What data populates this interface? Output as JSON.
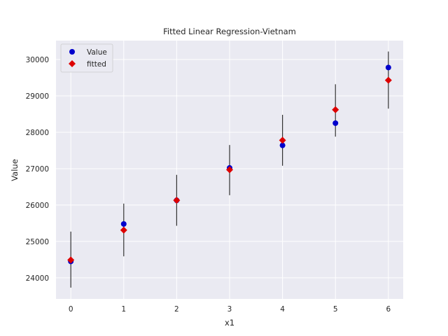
{
  "chart_data": {
    "type": "scatter",
    "title": "Fitted Linear Regression-Vietnam",
    "xlabel": "x1",
    "ylabel": "Value",
    "x": [
      0,
      1,
      2,
      3,
      4,
      5,
      6
    ],
    "xticks": [
      "0",
      "1",
      "2",
      "3",
      "4",
      "5",
      "6"
    ],
    "yticks": [
      24000,
      25000,
      26000,
      27000,
      28000,
      29000,
      30000
    ],
    "ytick_labels": [
      "24000",
      "25000",
      "26000",
      "27000",
      "28000",
      "29000",
      "30000"
    ],
    "xlim": [
      -0.28,
      6.28
    ],
    "ylim": [
      23420,
      30520
    ],
    "grid": true,
    "legend_position": "top-left",
    "series": [
      {
        "name": "Value",
        "marker": "circle",
        "color": "#0000cc",
        "values": [
          24450,
          25480,
          26130,
          27020,
          27640,
          28250,
          29780
        ]
      },
      {
        "name": "fitted",
        "marker": "diamond",
        "color": "#dd0000",
        "values": [
          24490,
          25310,
          26130,
          26970,
          27780,
          28620,
          29430
        ],
        "error_low": [
          23730,
          24590,
          25430,
          26270,
          27080,
          27880,
          28650
        ],
        "error_high": [
          25270,
          26040,
          26830,
          27650,
          28480,
          29320,
          30220
        ]
      }
    ]
  }
}
